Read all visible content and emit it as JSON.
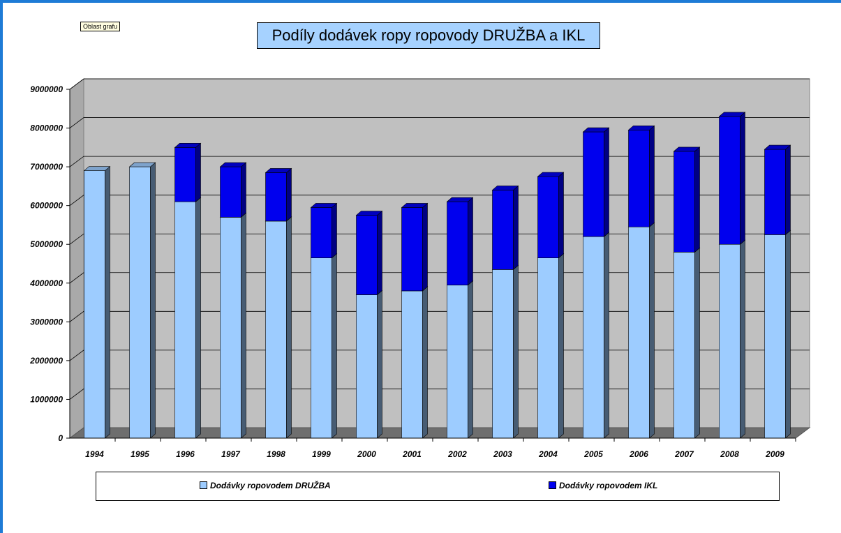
{
  "tooltip": "Oblast grafu",
  "chart_data": {
    "type": "bar",
    "stacked": true,
    "title": "Podíly dodávek ropy ropovody DRUŽBA a IKL",
    "categories": [
      "1994",
      "1995",
      "1996",
      "1997",
      "1998",
      "1999",
      "2000",
      "2001",
      "2002",
      "2003",
      "2004",
      "2005",
      "2006",
      "2007",
      "2008",
      "2009"
    ],
    "series": [
      {
        "name": "Dodávky ropovodem DRUŽBA",
        "color": "#9dccff",
        "values": [
          6900000,
          7000000,
          6100000,
          5700000,
          5600000,
          4650000,
          3700000,
          3800000,
          3950000,
          4350000,
          4650000,
          5200000,
          5450000,
          4800000,
          5000000,
          5250000
        ]
      },
      {
        "name": "Dodávky ropovodem IKL",
        "color": "#0000ee",
        "values": [
          0,
          0,
          1400000,
          1300000,
          1250000,
          1300000,
          2050000,
          2150000,
          2150000,
          2050000,
          2100000,
          2700000,
          2500000,
          2600000,
          3300000,
          2200000
        ]
      }
    ],
    "ylim": [
      0,
      9000000
    ],
    "yticks": [
      "0",
      "1000000",
      "2000000",
      "3000000",
      "4000000",
      "5000000",
      "6000000",
      "7000000",
      "8000000",
      "9000000"
    ],
    "grid": true,
    "legend_position": "bottom"
  }
}
